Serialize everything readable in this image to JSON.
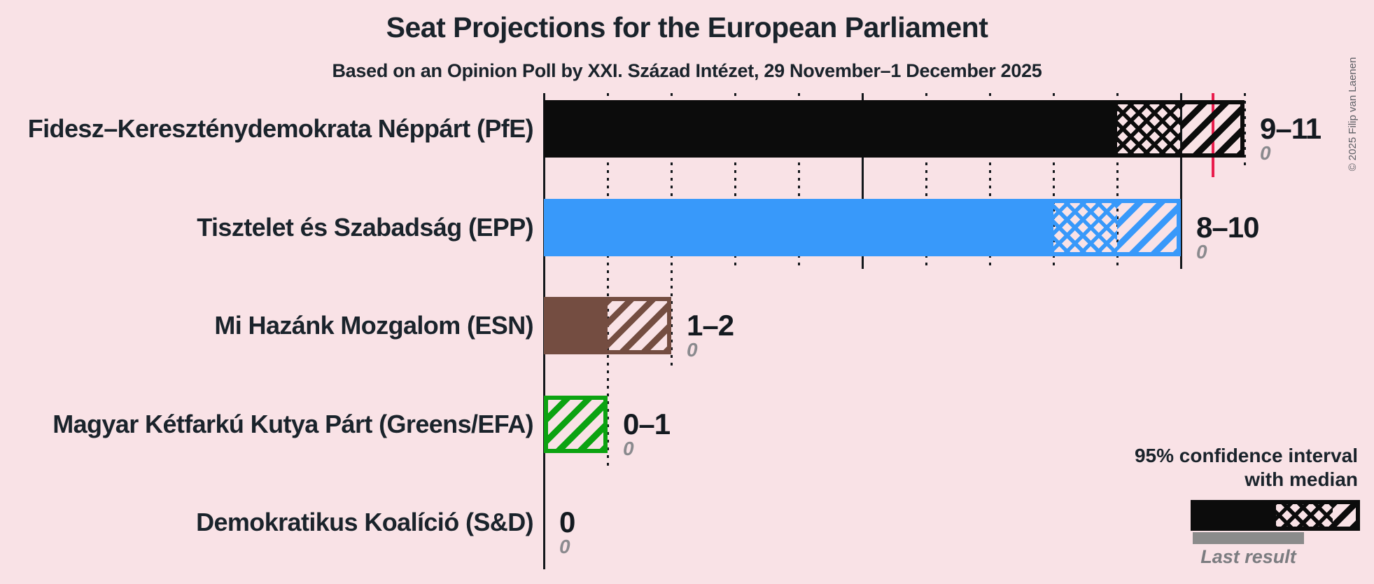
{
  "title": "Seat Projections for the European Parliament",
  "subtitle": "Based on an Opinion Poll by XXI. Század Intézet, 29 November–1 December 2025",
  "copyright": "© 2025 Filip van Laenen",
  "legend": {
    "ci_line1": "95% confidence interval",
    "ci_line2": "with median",
    "last_result_label": "Last result"
  },
  "colors": {
    "background": "#F9E2E6",
    "text_dark": "#1A232B",
    "gridline": "#14181C",
    "last_result_gray": "#8A8A8E",
    "legend_gray_bar": "#8B8B8B",
    "majority_line": "#E91D4D"
  },
  "chart_data": {
    "type": "bar",
    "orientation": "horizontal",
    "unit": "seats",
    "title": "Seat Projections for the European Parliament",
    "x_axis": {
      "min": 0,
      "max": 11.5,
      "gridline_interval": 1,
      "solid_gridline_every": 5,
      "tick_labels_shown": false
    },
    "majority_line_seats": 10.5,
    "rows": [
      {
        "label": "Fidesz–Kereszténydemokrata Néppárt (PfE)",
        "ci_low": 9,
        "median": 10,
        "ci_high": 11,
        "value_label": "9–11",
        "last_result": 0,
        "last_result_label": "0",
        "color": "#0C0C0C"
      },
      {
        "label": "Tisztelet és Szabadság (EPP)",
        "ci_low": 8,
        "median": 9,
        "ci_high": 10,
        "value_label": "8–10",
        "last_result": 0,
        "last_result_label": "0",
        "color": "#3899FA"
      },
      {
        "label": "Mi Hazánk Mozgalom (ESN)",
        "ci_low": 1,
        "median": 1,
        "ci_high": 2,
        "value_label": "1–2",
        "last_result": 0,
        "last_result_label": "0",
        "color": "#744D41"
      },
      {
        "label": "Magyar Kétfarkú Kutya Párt (Greens/EFA)",
        "ci_low": 0,
        "median": 0,
        "ci_high": 1,
        "value_label": "0–1",
        "last_result": 0,
        "last_result_label": "0",
        "color": "#0CA311"
      },
      {
        "label": "Demokratikus Koalíció (S&D)",
        "ci_low": 0,
        "median": 0,
        "ci_high": 0,
        "value_label": "0",
        "last_result": 0,
        "last_result_label": "0",
        "color": "#1558C9"
      }
    ]
  }
}
